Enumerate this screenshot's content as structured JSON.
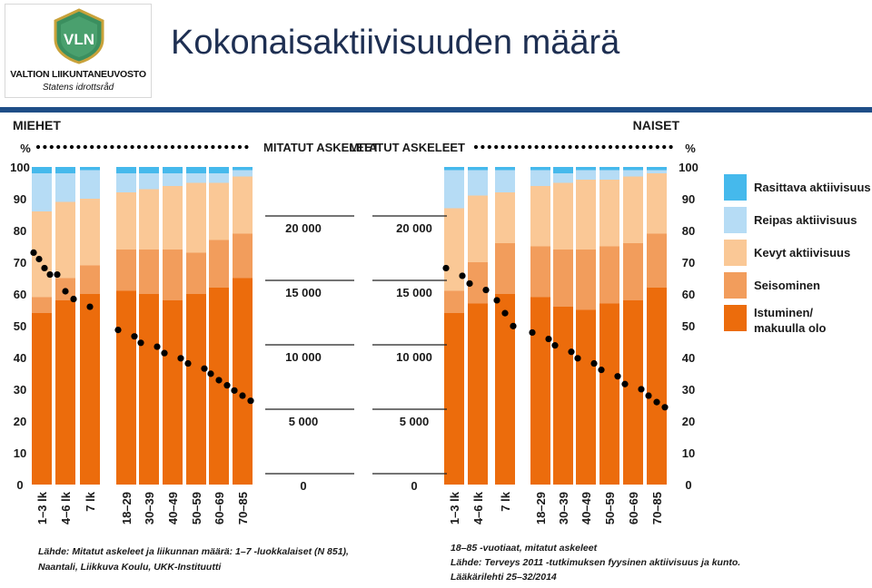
{
  "header": {
    "title": "Kokonaisaktiivisuuden määrä",
    "logo_mark": "VLN",
    "logo_org": "VALTION LIIKUNTANEUVOSTO",
    "logo_sub": "Statens idrottsråd"
  },
  "colors": {
    "header_band": "#1f4e87",
    "title": "#1e2f52",
    "istuminen": "#ec6c0c",
    "seisominen": "#f29d5c",
    "kevyt": "#fac896",
    "reipas": "#b6dcf5",
    "rasittava": "#45b9ec",
    "dots": "#000000"
  },
  "chart_data": [
    {
      "type": "bar",
      "stacked": true,
      "group_label": "MIEHET",
      "ylabel": "%",
      "ylim": [
        0,
        100
      ],
      "yticks": [
        "0",
        "10",
        "20",
        "30",
        "40",
        "50",
        "60",
        "70",
        "80",
        "90",
        "100"
      ],
      "categories": [
        "1–3 lk",
        "4–6 lk",
        "7 lk",
        "18–29",
        "30–39",
        "40–49",
        "50–59",
        "60–69",
        "70–85"
      ],
      "series": [
        {
          "name": "Istuminen/ makuulla olo",
          "values": [
            54,
            58,
            60,
            61,
            60,
            58,
            60,
            62,
            65
          ]
        },
        {
          "name": "Seisominen",
          "values": [
            5,
            7,
            9,
            13,
            14,
            16,
            13,
            15,
            14
          ]
        },
        {
          "name": "Kevyt aktiivisuus",
          "values": [
            27,
            24,
            21,
            18,
            19,
            20,
            22,
            18,
            18
          ]
        },
        {
          "name": "Reipas aktiivisuus",
          "values": [
            12,
            9,
            9,
            6,
            5,
            4,
            3,
            3,
            2
          ]
        },
        {
          "name": "Rasittava aktiivisuus",
          "values": [
            2,
            2,
            1,
            2,
            2,
            2,
            2,
            2,
            1
          ]
        }
      ],
      "steps_label": "MITATUT ASKELEET",
      "steps_axis_ticks": [
        "0",
        "5 000",
        "10 000",
        "15 000",
        "20 000"
      ],
      "steps_ylim": [
        0,
        25000
      ],
      "steps": [
        {
          "category": "1–3 lk",
          "values": [
            18000,
            17500,
            16800,
            16300
          ]
        },
        {
          "category": "4–6 lk",
          "values": [
            16300,
            15000,
            14400
          ]
        },
        {
          "category": "7 lk",
          "values": [
            13800
          ]
        },
        {
          "category": "18–29",
          "values": [
            12000,
            11500
          ]
        },
        {
          "category": "30–39",
          "values": [
            11000,
            10700
          ]
        },
        {
          "category": "40–49",
          "values": [
            10200,
            9800
          ]
        },
        {
          "category": "50–59",
          "values": [
            9400,
            9000
          ]
        },
        {
          "category": "60–69",
          "values": [
            8600,
            8100,
            7700
          ]
        },
        {
          "category": "70–85",
          "values": [
            7300,
            6900,
            6500
          ]
        }
      ]
    },
    {
      "type": "bar",
      "stacked": true,
      "group_label": "NAISET",
      "ylabel": "%",
      "ylim": [
        0,
        100
      ],
      "yticks": [
        "0",
        "10",
        "20",
        "30",
        "40",
        "50",
        "60",
        "70",
        "80",
        "90",
        "100"
      ],
      "categories": [
        "1–3 lk",
        "4–6 lk",
        "7 lk",
        "18–29",
        "30–39",
        "40–49",
        "50–59",
        "60–69",
        "70–85"
      ],
      "series": [
        {
          "name": "Istuminen/ makuulla olo",
          "values": [
            54,
            57,
            60,
            59,
            56,
            55,
            57,
            58,
            62
          ]
        },
        {
          "name": "Seisominen",
          "values": [
            7,
            13,
            16,
            16,
            18,
            19,
            18,
            18,
            17
          ]
        },
        {
          "name": "Kevyt aktiivisuus",
          "values": [
            26,
            21,
            16,
            19,
            21,
            22,
            21,
            21,
            19
          ]
        },
        {
          "name": "Reipas aktiivisuus",
          "values": [
            12,
            8,
            7,
            5,
            3,
            3,
            3,
            2,
            1
          ]
        },
        {
          "name": "Rasittava aktiivisuus",
          "values": [
            1,
            1,
            1,
            1,
            2,
            1,
            1,
            1,
            1
          ]
        }
      ],
      "steps_label": "MITATUT ASKELEET",
      "steps_axis_ticks": [
        "0",
        "5 000",
        "10 000",
        "15 000",
        "20 000"
      ],
      "steps_ylim": [
        0,
        25000
      ],
      "steps": [
        {
          "category": "1–3 lk",
          "values": [
            16800,
            16200
          ]
        },
        {
          "category": "4–6 lk",
          "values": [
            15600,
            15100
          ]
        },
        {
          "category": "7 lk",
          "values": [
            14300,
            13300,
            12300
          ]
        },
        {
          "category": "18–29",
          "values": [
            11800,
            11300
          ]
        },
        {
          "category": "30–39",
          "values": [
            10800,
            10300
          ]
        },
        {
          "category": "40–49",
          "values": [
            9800,
            9400
          ]
        },
        {
          "category": "50–59",
          "values": [
            8900,
            8400
          ]
        },
        {
          "category": "60–69",
          "values": [
            7800,
            7400
          ]
        },
        {
          "category": "70–85",
          "values": [
            6900,
            6400,
            6000
          ]
        }
      ]
    }
  ],
  "legend": [
    {
      "label": "Rasittava aktiivisuus",
      "color": "#45b9ec"
    },
    {
      "label": "Reipas aktiivisuus",
      "color": "#b6dcf5"
    },
    {
      "label": "Kevyt aktiivisuus",
      "color": "#fac896"
    },
    {
      "label": "Seisominen",
      "color": "#f29d5c"
    },
    {
      "label": "Istuminen/ makuulla olo",
      "color": "#ec6c0c"
    }
  ],
  "sources": {
    "left": [
      "Lähde: Mitatut askeleet ja liikunnan määrä: 1–7 -luokkalaiset (N 851),",
      "Naantali, Liikkuva Koulu, UKK-Instituutti"
    ],
    "right": [
      "18–85 -vuotiaat, mitatut askeleet",
      "Lähde: Terveys 2011 -tutkimuksen fyysinen aktiivisuus ja kunto.",
      "Lääkärilehti 25–32/2014"
    ]
  }
}
